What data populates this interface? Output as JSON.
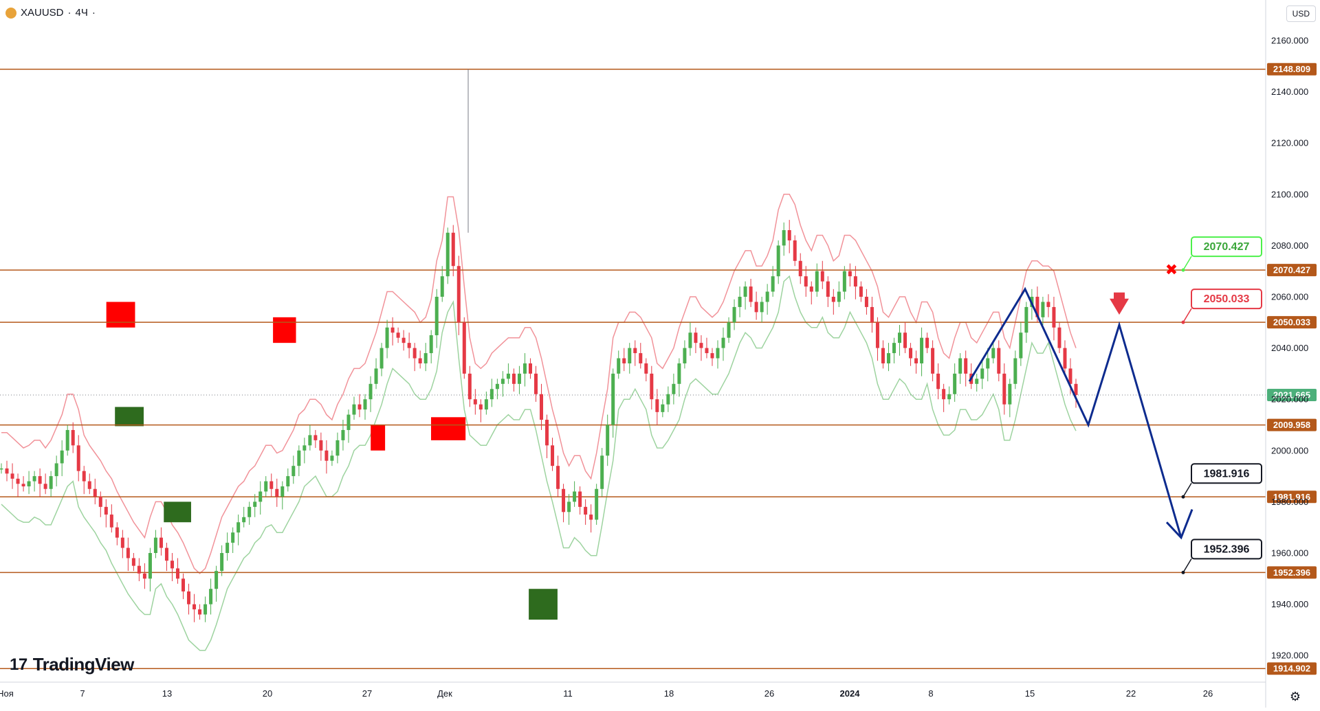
{
  "header": {
    "symbol": "XAUUSD",
    "timeframe": "4Ч",
    "separator": "·"
  },
  "currency": "USD",
  "logo": "TradingView",
  "colors": {
    "level_line": "#b4581a",
    "bull": "#4caf50",
    "bear": "#e53945",
    "supply_zone": "#ff0000",
    "demand_zone": "#2e6b1e",
    "projection": "#0d2b8e"
  },
  "chart_data": {
    "type": "candlestick",
    "title": "",
    "ylim": [
      1908,
      2171
    ],
    "xlim_days": [
      "Ноя 30",
      "Янв 28"
    ],
    "y_ticks": [
      "2160.000",
      "2140.000",
      "2120.000",
      "2100.000",
      "2080.000",
      "2060.000",
      "2040.000",
      "2020.000",
      "2000.000",
      "1980.000",
      "1960.000",
      "1940.000",
      "1920.000"
    ],
    "x_ticks": [
      "Ноя",
      "7",
      "13",
      "20",
      "27",
      "Дек",
      "11",
      "18",
      "26",
      "2024",
      "8",
      "15",
      "22",
      "26"
    ],
    "levels": [
      {
        "label": "2148.809",
        "value": 2148.809
      },
      {
        "label": "2070.427",
        "value": 2070.427
      },
      {
        "label": "2050.033",
        "value": 2050.033
      },
      {
        "label": "2009.958",
        "value": 2009.958
      },
      {
        "label": "1981.916",
        "value": 1981.916
      },
      {
        "label": "1952.396",
        "value": 1952.396
      },
      {
        "label": "1914.902",
        "value": 1914.902
      }
    ],
    "last_price": {
      "label": "2021.665",
      "value": 2021.665
    },
    "callouts": [
      {
        "label": "2070.427",
        "value": 2070.427,
        "style": "green"
      },
      {
        "label": "2050.033",
        "value": 2050.033,
        "style": "red"
      },
      {
        "label": "1981.916",
        "value": 1981.916,
        "style": "black"
      },
      {
        "label": "1952.396",
        "value": 1952.396,
        "style": "black"
      }
    ],
    "zones": [
      {
        "kind": "supply",
        "x0": 30.0,
        "x1": 32.4,
        "y0": 2004,
        "y1": 2013
      },
      {
        "kind": "supply",
        "x0": 19.0,
        "x1": 20.6,
        "y0": 2042,
        "y1": 2052
      },
      {
        "kind": "supply",
        "x0": 7.4,
        "x1": 9.4,
        "y0": 2048,
        "y1": 2058
      },
      {
        "kind": "supply",
        "x0": 25.8,
        "x1": 26.8,
        "y0": 2000,
        "y1": 2010
      },
      {
        "kind": "demand",
        "x0": 36.8,
        "x1": 38.8,
        "y0": 1934,
        "y1": 1946
      },
      {
        "kind": "demand",
        "x0": 11.4,
        "x1": 13.3,
        "y0": 1972,
        "y1": 1980
      },
      {
        "kind": "demand",
        "x0": 8.0,
        "x1": 10.0,
        "y0": 2009.5,
        "y1": 2017
      }
    ],
    "projection": [
      [
        38.7,
        2027
      ],
      [
        46.4,
        2063
      ],
      [
        49.6,
        2010
      ],
      [
        51.1,
        2049
      ],
      [
        54.5,
        1966
      ]
    ],
    "projection_partial": [
      [
        35.5,
        2027
      ],
      [
        39.2,
        2063
      ]
    ],
    "ohlc_closes": [
      1993,
      1991,
      1989,
      1987,
      1986,
      1988,
      1990,
      1987,
      1985,
      1990,
      1995,
      2000,
      2008,
      2002,
      1992,
      1988,
      1985,
      1982,
      1978,
      1975,
      1970,
      1966,
      1962,
      1958,
      1955,
      1952,
      1950,
      1960,
      1966,
      1962,
      1957,
      1954,
      1950,
      1945,
      1940,
      1938,
      1936,
      1940,
      1946,
      1953,
      1960,
      1964,
      1968,
      1972,
      1974,
      1978,
      1980,
      1984,
      1988,
      1985,
      1982,
      1986,
      1990,
      1994,
      2000,
      2002,
      2006,
      2004,
      2000,
      1996,
      1998,
      2004,
      2008,
      2014,
      2018,
      2016,
      2020,
      2026,
      2032,
      2040,
      2048,
      2046,
      2044,
      2042,
      2040,
      2036,
      2034,
      2038,
      2045,
      2060,
      2068,
      2085,
      2072,
      2050,
      2030,
      2020,
      2018,
      2016,
      2020,
      2024,
      2026,
      2028,
      2030,
      2026,
      2030,
      2034,
      2030,
      2022,
      2012,
      2002,
      1994,
      1985,
      1976,
      1980,
      1984,
      1978,
      1975,
      1973,
      1985,
      1998,
      2010,
      2030,
      2036,
      2034,
      2040,
      2038,
      2034,
      2030,
      2020,
      2015,
      2018,
      2022,
      2026,
      2034,
      2040,
      2046,
      2042,
      2040,
      2038,
      2036,
      2040,
      2044,
      2050,
      2056,
      2060,
      2064,
      2058,
      2054,
      2058,
      2062,
      2068,
      2080,
      2086,
      2082,
      2074,
      2068,
      2064,
      2062,
      2070,
      2066,
      2060,
      2058,
      2062,
      2070,
      2068,
      2064,
      2060,
      2056,
      2050,
      2040,
      2034,
      2038,
      2042,
      2046,
      2040,
      2036,
      2034,
      2044,
      2040,
      2030,
      2024,
      2020,
      2022,
      2030,
      2036,
      2030,
      2026,
      2028,
      2032,
      2036,
      2040,
      2030,
      2018,
      2026,
      2036,
      2046,
      2056,
      2060,
      2052,
      2058,
      2056,
      2048,
      2040,
      2032,
      2026,
      2021.665
    ]
  }
}
